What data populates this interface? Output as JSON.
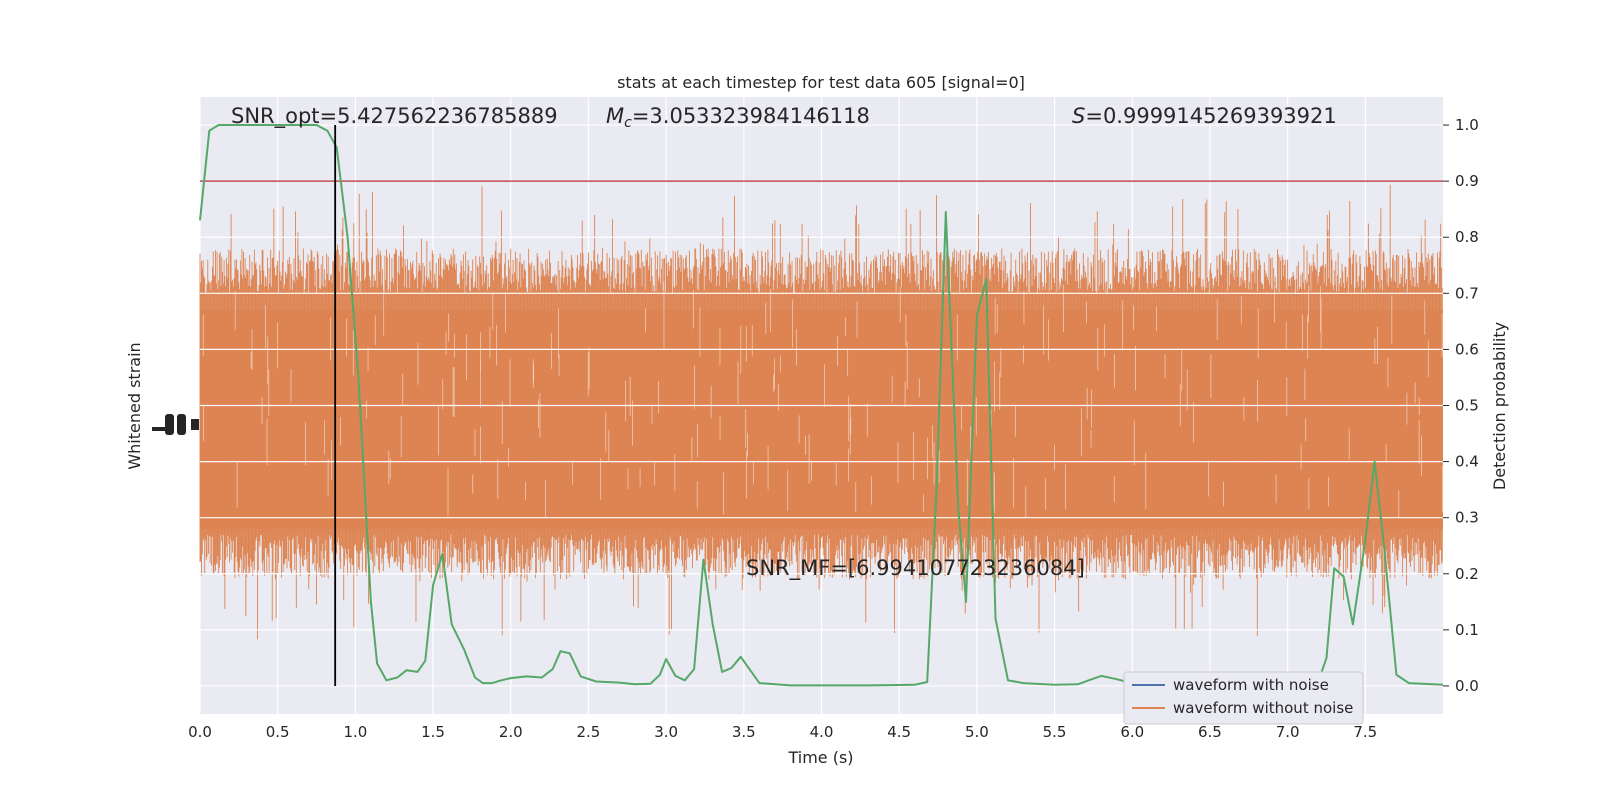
{
  "chart_data": {
    "type": "line",
    "title": "stats at each timestep for test data 605 [signal=0]",
    "xlabel": "Time (s)",
    "ylabel_left": "Whitened strain",
    "ylabel_right": "Detection probability",
    "xlim": [
      0,
      8
    ],
    "ylim_right": [
      -0.05,
      1.05
    ],
    "x_ticks": [
      "0.0",
      "0.5",
      "1.0",
      "1.5",
      "2.0",
      "2.5",
      "3.0",
      "3.5",
      "4.0",
      "4.5",
      "5.0",
      "5.5",
      "6.0",
      "6.5",
      "7.0",
      "7.5"
    ],
    "y_ticks_right": [
      "0.0",
      "0.1",
      "0.2",
      "0.3",
      "0.4",
      "0.5",
      "0.6",
      "0.7",
      "0.8",
      "0.9",
      "1.0"
    ],
    "grid": true,
    "legend": {
      "position": "lower-right"
    },
    "annotations": {
      "snr_opt": "SNR_opt=5.427562236785889",
      "mc_symbol": "M",
      "mc_sub": "c",
      "mc_value": "=3.053323984146118",
      "s_symbol": "S",
      "s_value": "=0.9999145269393921",
      "snr_mf": "SNR_MF=[6.994107723236084]"
    },
    "threshold": {
      "value": 0.9,
      "color": "#c44e52"
    },
    "marker_time": 0.87,
    "series": [
      {
        "name": "waveform with noise",
        "color": "#4c72b0",
        "kind": "strain"
      },
      {
        "name": "waveform without noise",
        "color": "#dd8452",
        "kind": "strain"
      },
      {
        "name": "",
        "color": "#55a868",
        "kind": "probability",
        "x": [
          0.0,
          0.06,
          0.12,
          0.25,
          0.5,
          0.75,
          0.82,
          0.88,
          0.95,
          1.02,
          1.06,
          1.1,
          1.14,
          1.2,
          1.27,
          1.33,
          1.4,
          1.45,
          1.5,
          1.56,
          1.62,
          1.7,
          1.77,
          1.82,
          1.88,
          1.94,
          2.0,
          2.1,
          2.2,
          2.27,
          2.32,
          2.38,
          2.45,
          2.55,
          2.7,
          2.8,
          2.9,
          2.96,
          3.0,
          3.06,
          3.12,
          3.18,
          3.24,
          3.3,
          3.36,
          3.42,
          3.48,
          3.6,
          3.8,
          4.0,
          4.3,
          4.6,
          4.68,
          4.74,
          4.8,
          4.88,
          4.93,
          5.0,
          5.06,
          5.12,
          5.2,
          5.3,
          5.5,
          5.65,
          5.72,
          5.8,
          5.9,
          6.0,
          6.2,
          6.5,
          6.8,
          7.0,
          7.1,
          7.2,
          7.25,
          7.3,
          7.36,
          7.42,
          7.5,
          7.56,
          7.62,
          7.7,
          7.78,
          8.0
        ],
        "values": [
          0.83,
          0.99,
          1.0,
          1.0,
          1.0,
          1.0,
          0.99,
          0.96,
          0.8,
          0.55,
          0.35,
          0.15,
          0.04,
          0.01,
          0.015,
          0.028,
          0.025,
          0.045,
          0.18,
          0.235,
          0.11,
          0.065,
          0.015,
          0.005,
          0.005,
          0.01,
          0.014,
          0.017,
          0.015,
          0.03,
          0.062,
          0.058,
          0.017,
          0.008,
          0.006,
          0.003,
          0.004,
          0.02,
          0.048,
          0.018,
          0.01,
          0.03,
          0.225,
          0.11,
          0.025,
          0.032,
          0.052,
          0.005,
          0.001,
          0.001,
          0.001,
          0.002,
          0.007,
          0.35,
          0.845,
          0.32,
          0.15,
          0.66,
          0.725,
          0.12,
          0.01,
          0.005,
          0.002,
          0.003,
          0.01,
          0.018,
          0.012,
          0.005,
          0.003,
          0.002,
          0.002,
          0.003,
          0.005,
          0.01,
          0.05,
          0.21,
          0.195,
          0.11,
          0.26,
          0.4,
          0.25,
          0.02,
          0.005,
          0.002
        ]
      }
    ]
  }
}
